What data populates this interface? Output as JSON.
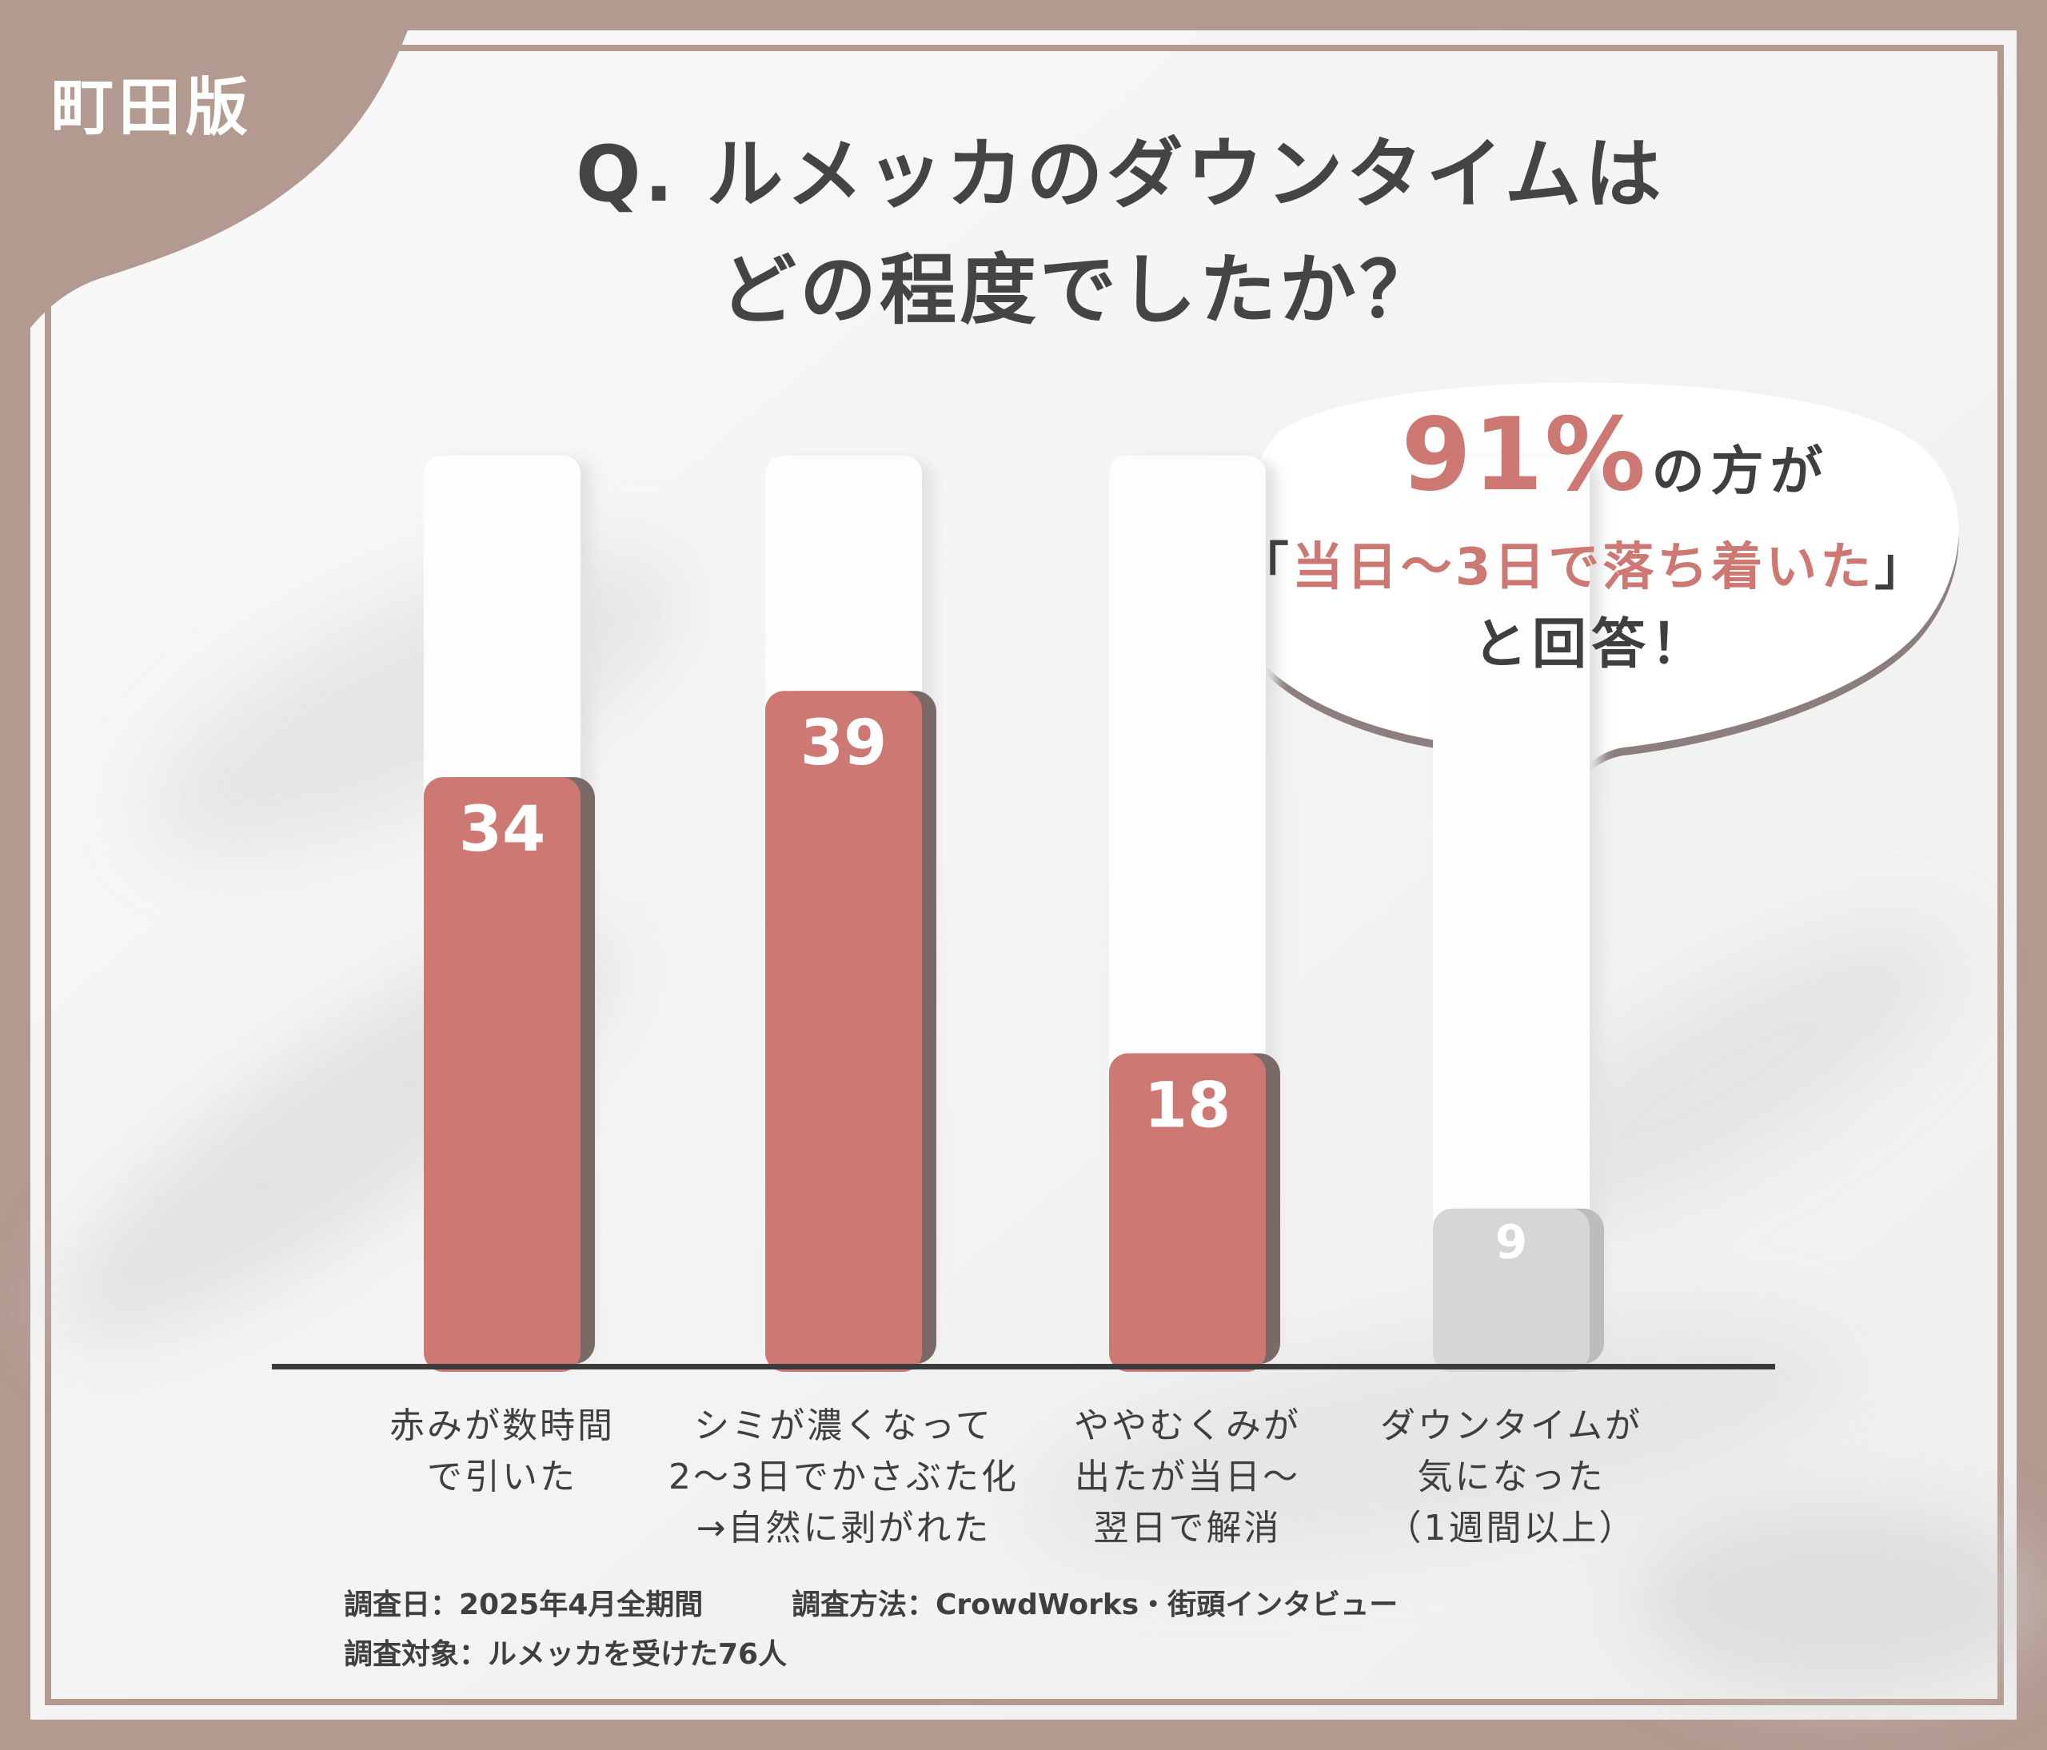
{
  "badge": {
    "label": "町田版"
  },
  "title": {
    "line1": "Q. ルメッカのダウンタイムは",
    "line2": "どの程度でしたか？"
  },
  "callout": {
    "percent": "91%",
    "percent_suffix": "の方が",
    "quote_open": "「",
    "quote": "当日〜3日で落ち着いた",
    "quote_close": "」",
    "answer": "と回答！"
  },
  "chart_data": {
    "type": "bar",
    "categories": [
      "赤みが数時間\nで引いた",
      "シミが濃くなって\n2〜3日でかさぶた化\n→自然に剥がれた",
      "ややむくみが\n出たが当日〜\n翌日で解消",
      "ダウンタイムが\n気になった\n（1週間以上）"
    ],
    "values": [
      34,
      39,
      18,
      9
    ],
    "value_labels": [
      "34",
      "39",
      "18",
      "9"
    ],
    "ylim": [
      0,
      100
    ],
    "grid": false,
    "colors": {
      "highlight": "#cd7873",
      "muted": "#d6d6d6",
      "shadow": "#7a6a67",
      "track": "#fdfdfd"
    },
    "highlighted": [
      true,
      true,
      true,
      false
    ],
    "title": "",
    "xlabel": "",
    "ylabel": ""
  },
  "footer": {
    "date": "調査日：2025年4月全期間",
    "method": "調査方法：CrowdWorks・街頭インタビュー",
    "target": "調査対象：ルメッカを受けた76人"
  },
  "colors": {
    "frame": "#b39a91",
    "panel": "#f4f4f4",
    "accent": "#cd7873",
    "text": "#3f3f3f"
  }
}
